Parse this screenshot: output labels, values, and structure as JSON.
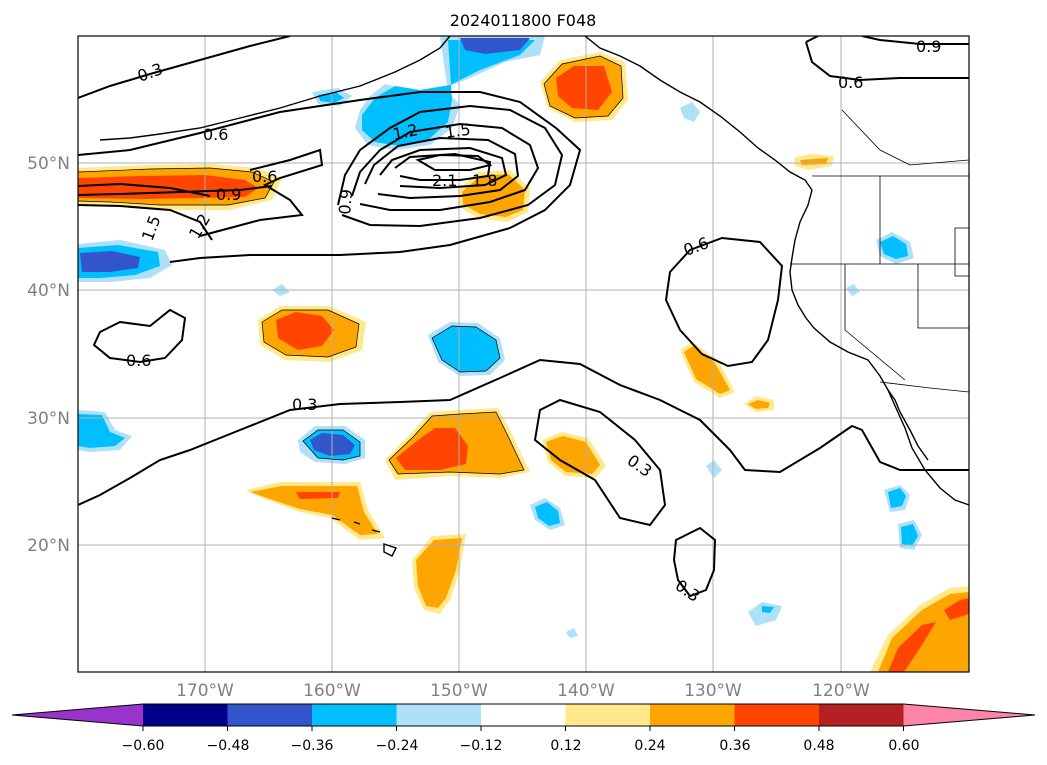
{
  "title": "2024011800 F048",
  "axes": {
    "lat_labels": [
      "50°N",
      "40°N",
      "30°N",
      "20°N"
    ],
    "lon_labels": [
      "170°W",
      "160°W",
      "150°W",
      "140°W",
      "130°W",
      "120°W"
    ],
    "label_color": "#808080",
    "grid_color": "#b0b0b0"
  },
  "contour_labels": [
    {
      "text": "0.3"
    },
    {
      "text": "0.9"
    },
    {
      "text": "0.6"
    },
    {
      "text": "0.6"
    },
    {
      "text": "1.2"
    },
    {
      "text": "1.5"
    },
    {
      "text": "0.6"
    },
    {
      "text": "0.9"
    },
    {
      "text": "2.1"
    },
    {
      "text": "1.8"
    },
    {
      "text": "0.9"
    },
    {
      "text": "1.5"
    },
    {
      "text": "1.2"
    },
    {
      "text": "0.6"
    },
    {
      "text": "0.6"
    },
    {
      "text": "0.3"
    },
    {
      "text": "0.3"
    },
    {
      "text": "0.3"
    }
  ],
  "colorbar": {
    "ticks": [
      "−0.60",
      "−0.48",
      "−0.36",
      "−0.24",
      "−0.12",
      "0.12",
      "0.24",
      "0.36",
      "0.48",
      "0.60"
    ],
    "colors": [
      "#9933cc",
      "#00008b",
      "#3355cc",
      "#00bfff",
      "#aee0f8",
      "#ffffff",
      "#ffe98a",
      "#ffa500",
      "#ff4500",
      "#b22222",
      "#ff85a8"
    ]
  }
}
